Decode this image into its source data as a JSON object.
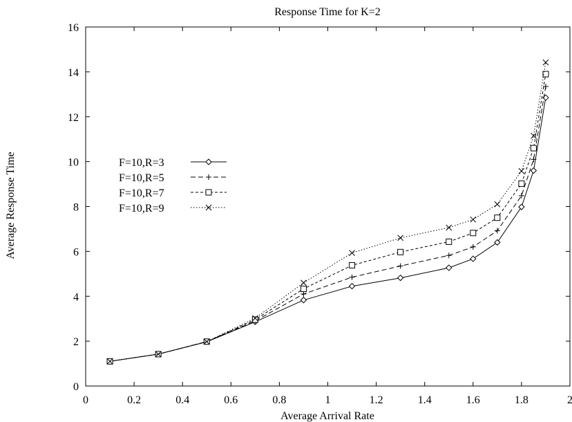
{
  "chart_data": {
    "type": "line",
    "title": "Response Time for K=2",
    "xlabel": "Average Arrival Rate",
    "ylabel": "Average Response Time",
    "xlim": [
      0,
      2
    ],
    "ylim": [
      0,
      16
    ],
    "xticks": [
      0,
      0.2,
      0.4,
      0.6,
      0.8,
      1,
      1.2,
      1.4,
      1.6,
      1.8,
      2
    ],
    "xtick_labels": [
      "0",
      "0.2",
      "0.4",
      "0.6",
      "0.8",
      "1",
      "1.2",
      "1.4",
      "1.6",
      "1.8",
      "2"
    ],
    "yticks": [
      0,
      2,
      4,
      6,
      8,
      10,
      12,
      14,
      16
    ],
    "ytick_labels": [
      "0",
      "2",
      "4",
      "6",
      "8",
      "10",
      "12",
      "14",
      "16"
    ],
    "grid": false,
    "legend_position": "left",
    "x": [
      0.1,
      0.3,
      0.5,
      0.7,
      0.9,
      1.1,
      1.3,
      1.5,
      1.6,
      1.7,
      1.8,
      1.85,
      1.9
    ],
    "series": [
      {
        "name": "F=10,R=3",
        "marker": "diamond",
        "dash": "solid",
        "values": [
          1.1,
          1.42,
          1.97,
          2.86,
          3.83,
          4.45,
          4.82,
          5.27,
          5.67,
          6.4,
          7.98,
          9.6,
          12.85
        ]
      },
      {
        "name": "F=10,R=5",
        "marker": "plus",
        "dash": "dashed",
        "values": [
          1.1,
          1.42,
          1.98,
          2.9,
          4.1,
          4.85,
          5.35,
          5.82,
          6.2,
          6.92,
          8.48,
          10.1,
          13.35
        ]
      },
      {
        "name": "F=10,R=7",
        "marker": "square",
        "dash": "shortdash",
        "values": [
          1.1,
          1.42,
          1.98,
          2.96,
          4.33,
          5.38,
          5.97,
          6.43,
          6.82,
          7.5,
          9.02,
          10.6,
          13.9
        ]
      },
      {
        "name": "F=10,R=9",
        "marker": "cross",
        "dash": "dotted",
        "values": [
          1.1,
          1.42,
          1.98,
          3.02,
          4.6,
          5.93,
          6.6,
          7.06,
          7.42,
          8.1,
          9.58,
          11.15,
          14.42
        ]
      }
    ]
  }
}
